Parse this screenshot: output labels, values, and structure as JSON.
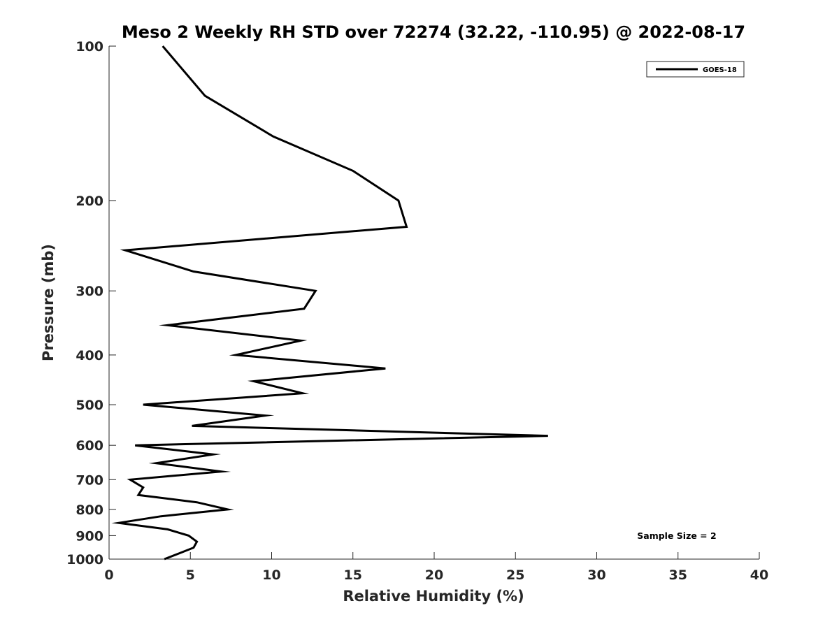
{
  "chart_data": {
    "type": "line",
    "title": "Meso 2 Weekly RH STD over 72274 (32.22, -110.95) @ 2022-08-17",
    "xlabel": "Relative Humidity (%)",
    "ylabel": "Pressure (mb)",
    "xlim": [
      0,
      40
    ],
    "ylim": [
      100,
      1000
    ],
    "yscale": "log",
    "yreversed": true,
    "xticks": [
      "0",
      "5",
      "10",
      "15",
      "20",
      "25",
      "30",
      "35",
      "40"
    ],
    "yticks": [
      "100",
      "200",
      "300",
      "400",
      "500",
      "600",
      "700",
      "800",
      "900",
      "1000"
    ],
    "series": [
      {
        "name": "GOES-18",
        "color": "#000000",
        "points": [
          {
            "x": 3.3,
            "y": 100
          },
          {
            "x": 5.9,
            "y": 125
          },
          {
            "x": 10.1,
            "y": 150
          },
          {
            "x": 15.0,
            "y": 175
          },
          {
            "x": 17.8,
            "y": 200
          },
          {
            "x": 18.3,
            "y": 225
          },
          {
            "x": 1.0,
            "y": 250
          },
          {
            "x": 5.2,
            "y": 275
          },
          {
            "x": 12.7,
            "y": 300
          },
          {
            "x": 12.0,
            "y": 325
          },
          {
            "x": 3.6,
            "y": 350
          },
          {
            "x": 11.8,
            "y": 375
          },
          {
            "x": 7.8,
            "y": 400
          },
          {
            "x": 17.0,
            "y": 425
          },
          {
            "x": 8.9,
            "y": 450
          },
          {
            "x": 11.9,
            "y": 475
          },
          {
            "x": 2.1,
            "y": 500
          },
          {
            "x": 9.6,
            "y": 525
          },
          {
            "x": 5.1,
            "y": 550
          },
          {
            "x": 27.0,
            "y": 575
          },
          {
            "x": 1.6,
            "y": 600
          },
          {
            "x": 6.4,
            "y": 625
          },
          {
            "x": 2.9,
            "y": 650
          },
          {
            "x": 6.9,
            "y": 675
          },
          {
            "x": 1.3,
            "y": 700
          },
          {
            "x": 2.1,
            "y": 725
          },
          {
            "x": 1.8,
            "y": 750
          },
          {
            "x": 5.4,
            "y": 775
          },
          {
            "x": 7.3,
            "y": 800
          },
          {
            "x": 3.2,
            "y": 825
          },
          {
            "x": 0.6,
            "y": 850
          },
          {
            "x": 3.6,
            "y": 875
          },
          {
            "x": 4.9,
            "y": 900
          },
          {
            "x": 5.4,
            "y": 925
          },
          {
            "x": 5.2,
            "y": 950
          },
          {
            "x": 4.3,
            "y": 975
          },
          {
            "x": 3.4,
            "y": 1000
          }
        ]
      }
    ],
    "legend": {
      "entries": [
        "GOES-18"
      ],
      "location": "top-right"
    },
    "annotations": [
      "Sample Size = 2"
    ],
    "grid": false
  }
}
